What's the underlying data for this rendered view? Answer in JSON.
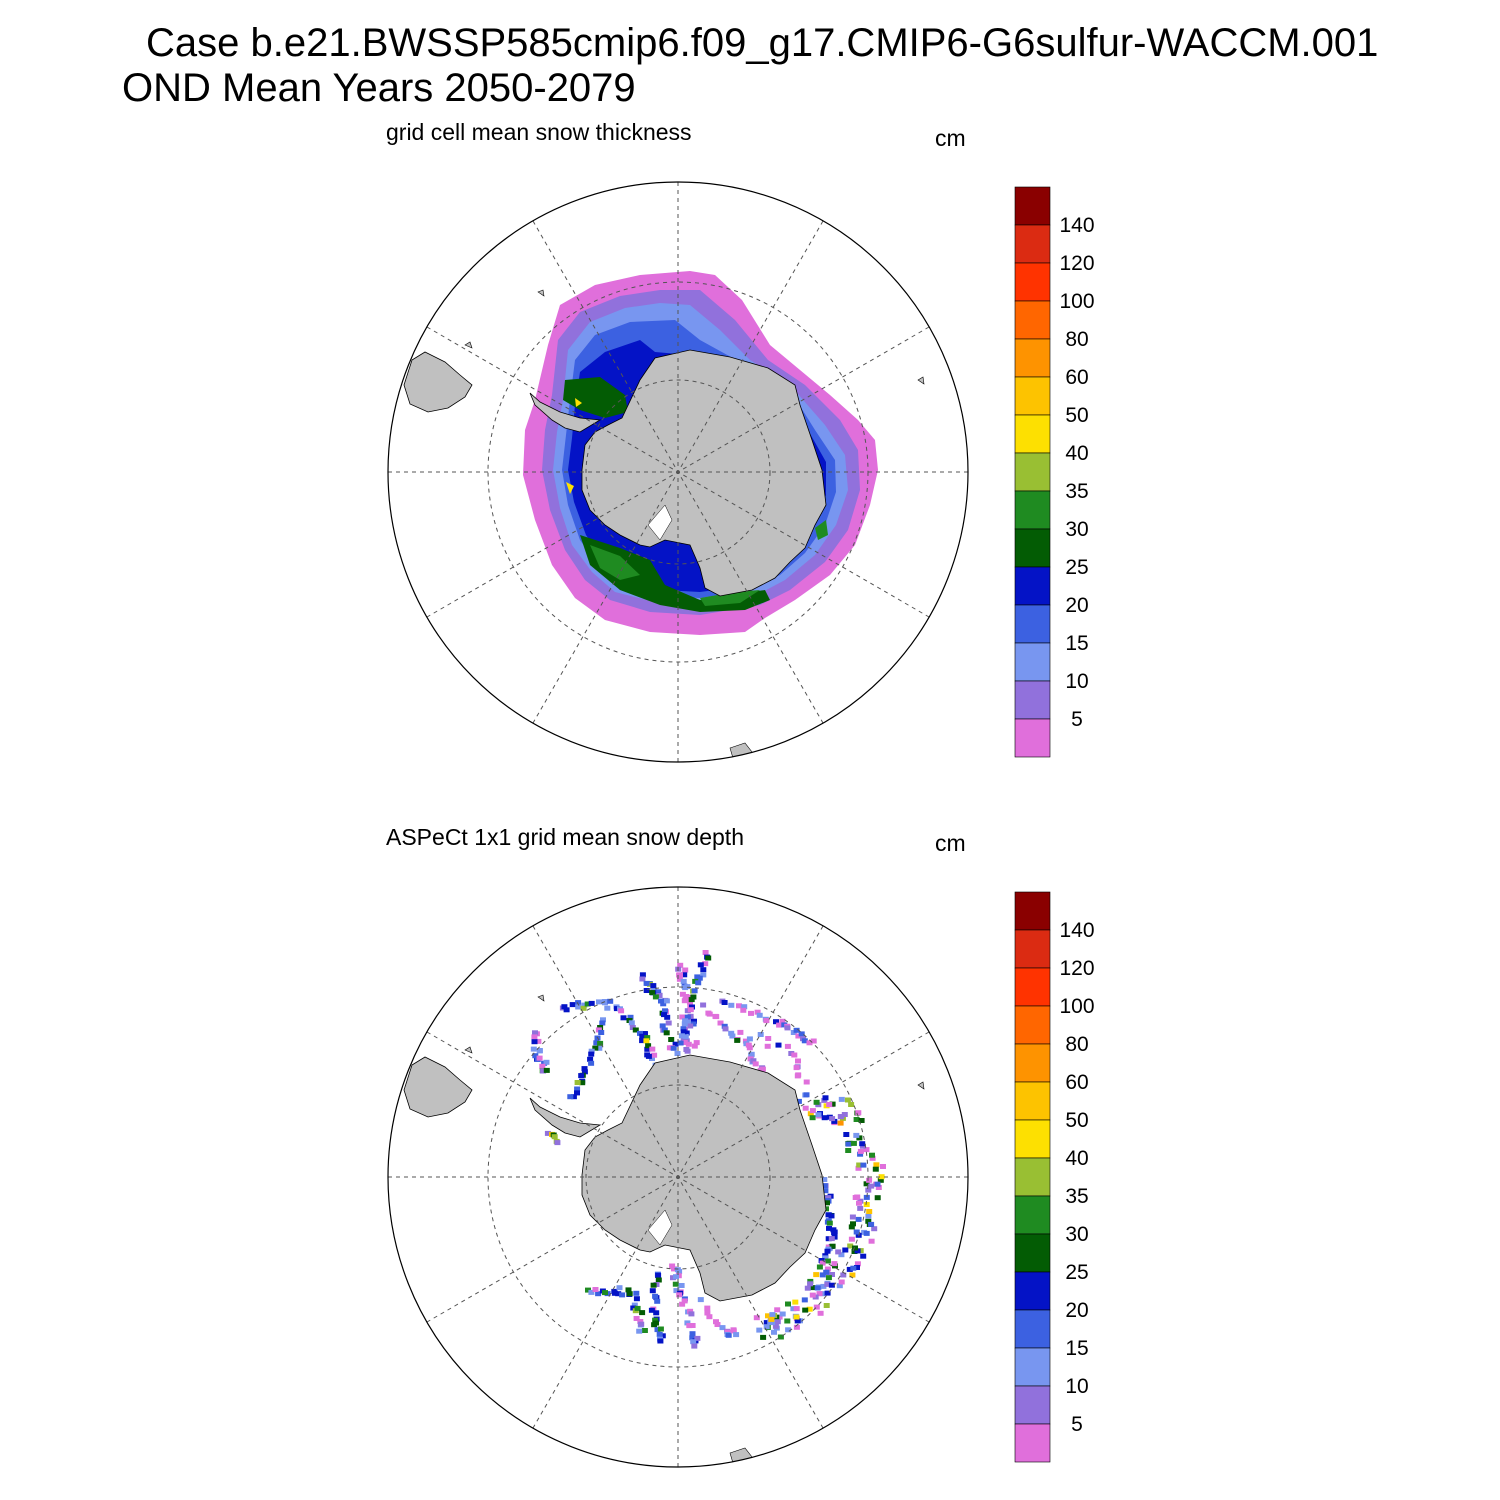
{
  "header": {
    "line1": "Case b.e21.BWSSP585cmip6.f09_g17.CMIP6-G6sulfur-WACCM.001",
    "line2": "OND Mean   Years 2050-2079"
  },
  "chart_data": [
    {
      "type": "map",
      "projection": "south polar stereographic",
      "title": "grid cell mean snow thickness",
      "units": "cm",
      "colorbar": {
        "labels": [
          "5",
          "10",
          "15",
          "20",
          "25",
          "30",
          "35",
          "40",
          "50",
          "60",
          "80",
          "100",
          "120",
          "140"
        ],
        "levels": [
          5,
          10,
          15,
          20,
          25,
          30,
          35,
          40,
          50,
          60,
          80,
          100,
          120,
          140
        ],
        "colors": [
          "#e06fdb",
          "#9171dc",
          "#7896f0",
          "#3c61e1",
          "#0413c6",
          "#035c04",
          "#1f8b21",
          "#99bf33",
          "#fde001",
          "#fdc300",
          "#fe9300",
          "#ff6600",
          "#ff3300",
          "#db2b12",
          "#8a0000"
        ]
      }
    },
    {
      "type": "map",
      "projection": "south polar stereographic",
      "title": "ASPeCt 1x1 grid mean snow depth",
      "units": "cm",
      "colorbar": {
        "labels": [
          "5",
          "10",
          "15",
          "20",
          "25",
          "30",
          "35",
          "40",
          "50",
          "60",
          "80",
          "100",
          "120",
          "140"
        ],
        "levels": [
          5,
          10,
          15,
          20,
          25,
          30,
          35,
          40,
          50,
          60,
          80,
          100,
          120,
          140
        ],
        "colors": [
          "#e06fdb",
          "#9171dc",
          "#7896f0",
          "#3c61e1",
          "#0413c6",
          "#035c04",
          "#1f8b21",
          "#99bf33",
          "#fde001",
          "#fdc300",
          "#fe9300",
          "#ff6600",
          "#ff3300",
          "#db2b12",
          "#8a0000"
        ]
      }
    }
  ],
  "colors": {
    "land": "#c0c0c0",
    "grid": "#555555"
  }
}
